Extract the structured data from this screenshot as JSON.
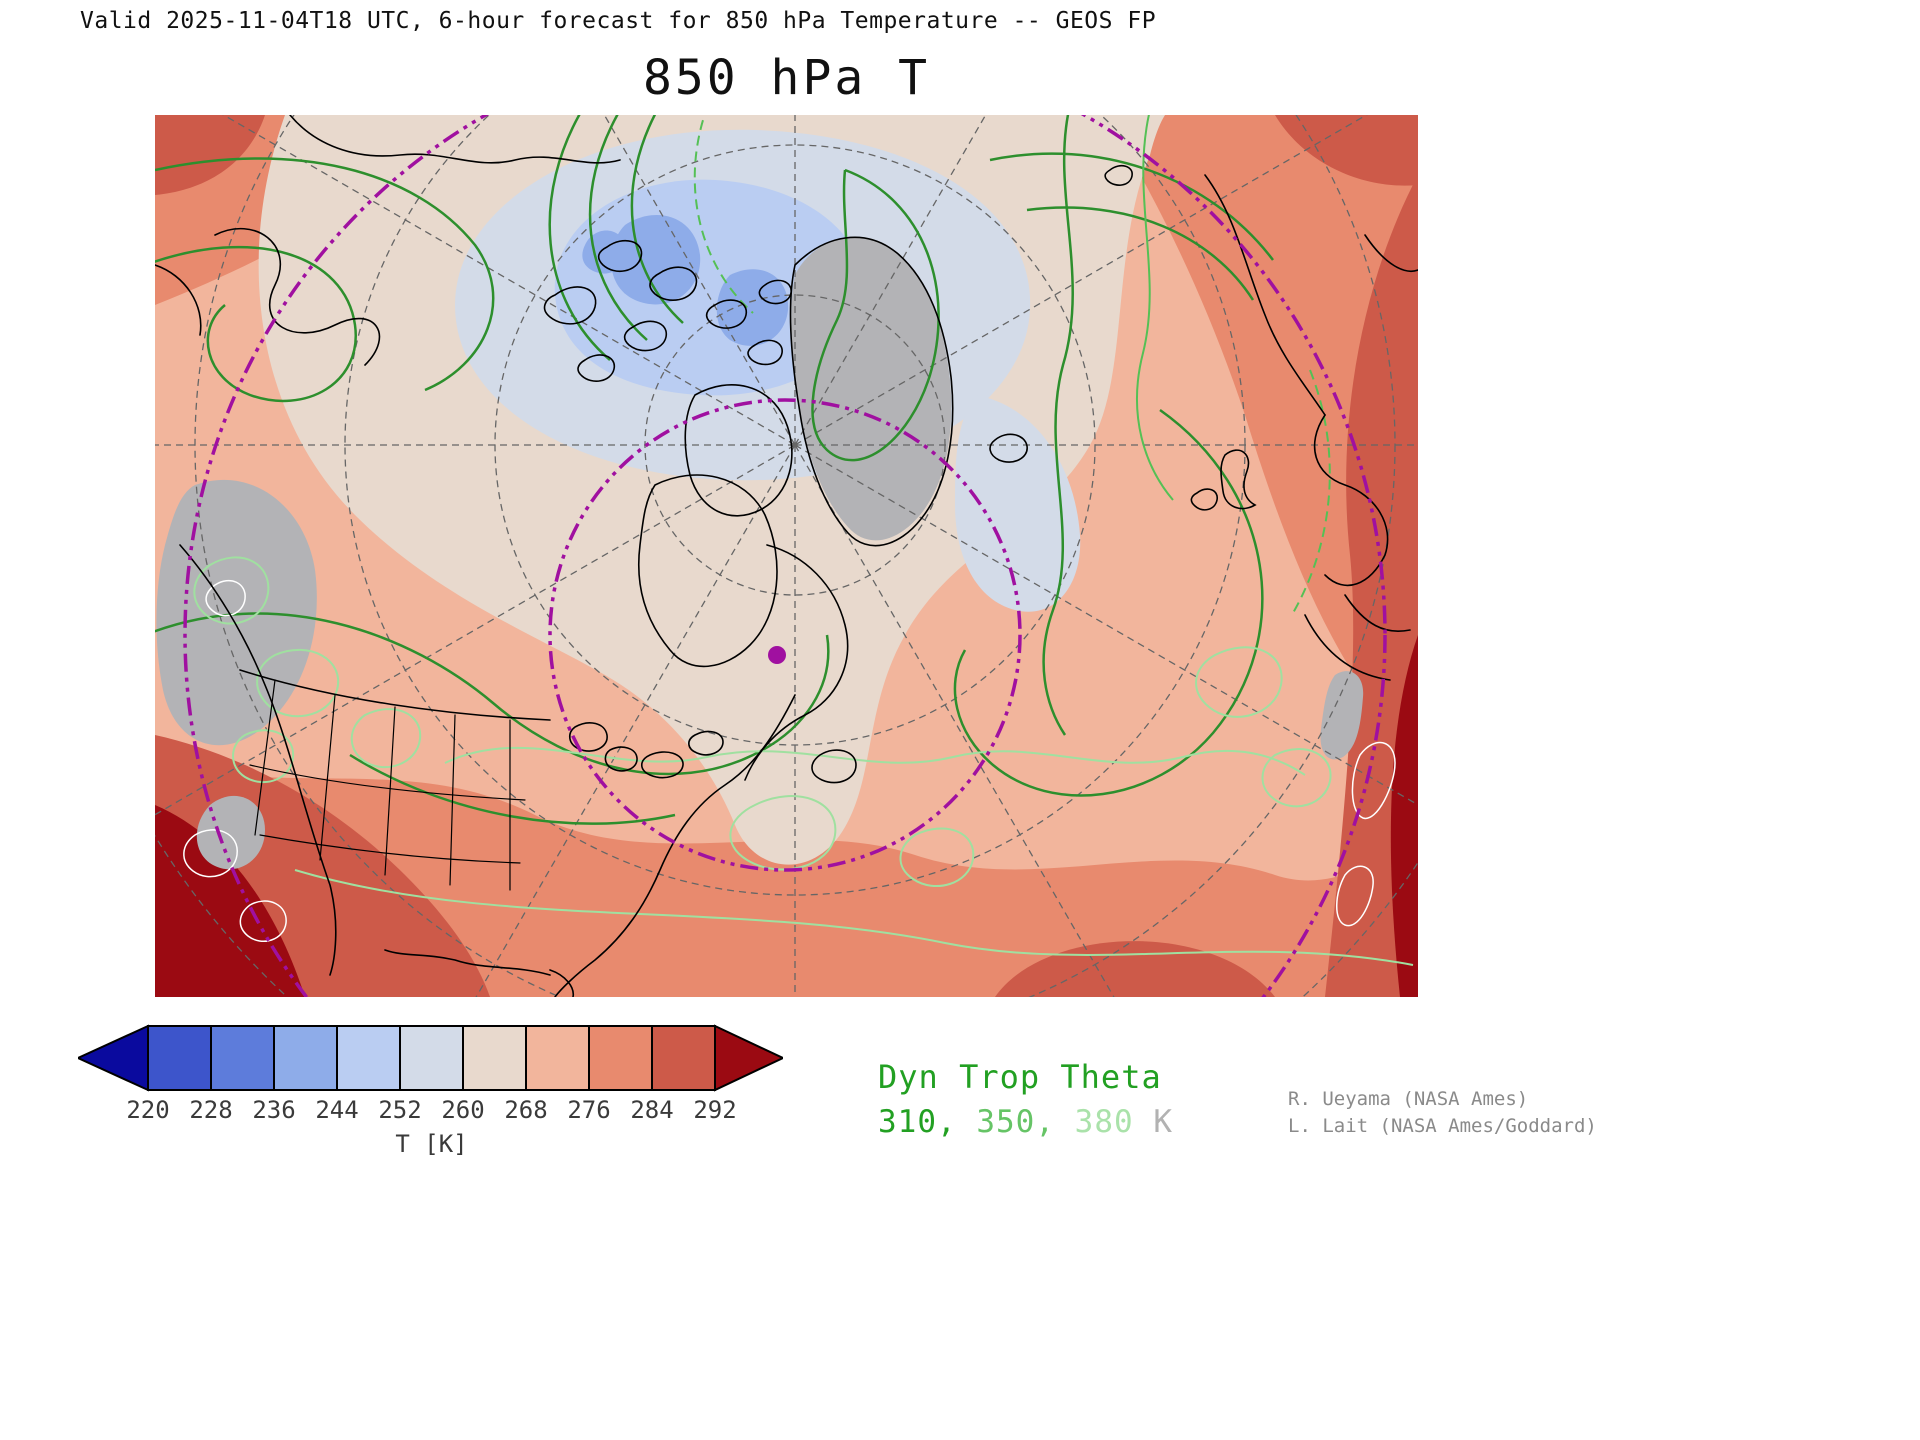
{
  "header": {
    "valid_line": "Valid 2025-11-04T18 UTC, 6-hour forecast for 850 hPa Temperature -- GEOS FP",
    "title": "850 hPa T"
  },
  "chart_data": {
    "type": "heatmap",
    "title": "850 hPa T",
    "subtitle": "Valid 2025-11-04T18 UTC, 6-hour forecast for 850 hPa Temperature -- GEOS FP",
    "model": "GEOS FP",
    "variable": "850 hPa Temperature",
    "colorbar_label": "T [K]",
    "colorbar_ticks": [
      220,
      228,
      236,
      244,
      252,
      260,
      268,
      276,
      284,
      292
    ],
    "overlay_contours": {
      "name": "Dyn Trop Theta",
      "levels_K": [
        310,
        350,
        380
      ]
    }
  },
  "colorbar": {
    "ticks": [
      "220",
      "228",
      "236",
      "244",
      "252",
      "260",
      "268",
      "276",
      "284",
      "292"
    ],
    "unit_label": "T [K]",
    "under_arrow_color": "#0a0a9e",
    "over_arrow_color": "#9b0a12",
    "cell_colors": [
      "#3d55cb",
      "#5d7cdb",
      "#8eace9",
      "#bacdf2",
      "#d3dbe8",
      "#e8d9cd",
      "#f2b59c",
      "#e88a6e",
      "#cd5a49"
    ]
  },
  "legend": {
    "title": "Dyn Trop Theta",
    "title_color": "#22a022",
    "separator": ", ",
    "values": [
      {
        "label": "310",
        "color": "#22a022"
      },
      {
        "label": "350",
        "color": "#66c466"
      },
      {
        "label": "380",
        "color": "#aae2aa"
      }
    ],
    "unit": " K",
    "unit_color": "#b2b2b2"
  },
  "map_colors": {
    "trop_theta_310": "#2d8f2d",
    "trop_theta_350": "#55c055",
    "trop_theta_380": "#a0e0a0",
    "latitude_circle": "#a010a0",
    "marker": "#a010a0",
    "graticule": "#666666",
    "below_surface_gray": "#b3b3b6"
  },
  "credits": {
    "line1": "R. Ueyama (NASA Ames)",
    "line2": "L. Lait (NASA Ames/Goddard)",
    "color": "#8a8a8a"
  }
}
